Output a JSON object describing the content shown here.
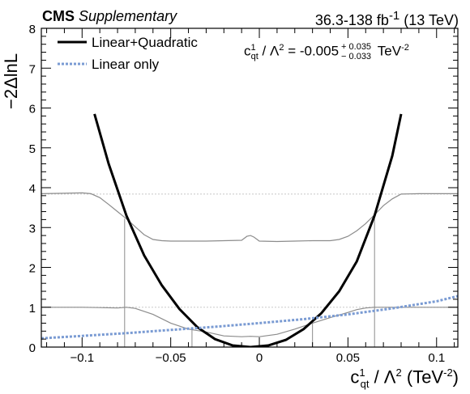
{
  "header": {
    "experiment": "CMS",
    "tag": "Supplementary",
    "lumi_value": "36.3-138 fb",
    "lumi_exp": "-1",
    "energy": "(13 TeV)"
  },
  "axis_text": {
    "y": "−2ΔlnL",
    "x_main": "c",
    "x_sub": "qt",
    "x_sup": "1",
    "x_rest": " / Λ",
    "x_sup2": "2",
    "x_unit": " (TeV",
    "x_unit_exp": "-2",
    "x_close": ")"
  },
  "result": {
    "c": "c",
    "c_sub": "qt",
    "c_sup": "1",
    "lambda": " / Λ",
    "lambda_sup": "2",
    "equals": " = -0.005",
    "plus": "+ 0.035",
    "minus": "− 0.033",
    "unit": " TeV",
    "unit_exp": "-2"
  },
  "colors": {
    "quad": "#000000",
    "linear": "#7a9bd3",
    "profile": "#8c8c8c",
    "ref_line": "#c8c8c8"
  },
  "chart_data": {
    "type": "line",
    "xlim": [
      -0.123,
      0.112
    ],
    "ylim": [
      0,
      8
    ],
    "x_ticks": [
      -0.1,
      -0.05,
      0,
      0.05,
      0.1
    ],
    "x_tick_labels": [
      "−0.1",
      "−0.05",
      "0",
      "0.05",
      "0.1"
    ],
    "y_ticks": [
      0,
      1,
      2,
      3,
      4,
      5,
      6,
      7,
      8
    ],
    "y_tick_labels": [
      "0",
      "1",
      "2",
      "3",
      "4",
      "5",
      "6",
      "7",
      "8"
    ],
    "reference_levels": [
      1,
      3.84
    ],
    "legend_position": "top-left",
    "series": [
      {
        "name": "Linear+Quadratic",
        "style": "solid",
        "x": [
          -0.093,
          -0.085,
          -0.075,
          -0.065,
          -0.055,
          -0.045,
          -0.035,
          -0.025,
          -0.015,
          -0.005,
          0.005,
          0.015,
          0.025,
          0.035,
          0.045,
          0.055,
          0.065,
          0.075,
          0.08
        ],
        "y": [
          5.85,
          4.6,
          3.3,
          2.3,
          1.55,
          0.95,
          0.5,
          0.2,
          0.04,
          0.0,
          0.04,
          0.18,
          0.45,
          0.85,
          1.4,
          2.15,
          3.3,
          4.8,
          5.85
        ]
      },
      {
        "name": "Linear only",
        "style": "dotted",
        "x": [
          -0.123,
          -0.1,
          -0.075,
          -0.05,
          -0.025,
          0,
          0.025,
          0.05,
          0.075,
          0.1,
          0.112
        ],
        "y": [
          0.22,
          0.28,
          0.35,
          0.43,
          0.51,
          0.6,
          0.7,
          0.82,
          0.97,
          1.15,
          1.28
        ]
      },
      {
        "name": "",
        "style": "profile-95",
        "x": [
          -0.123,
          -0.11,
          -0.1,
          -0.095,
          -0.09,
          -0.085,
          -0.08,
          -0.075,
          -0.07,
          -0.065,
          -0.06,
          -0.055,
          -0.05,
          -0.04,
          -0.03,
          -0.02,
          -0.01,
          -0.007,
          -0.005,
          -0.003,
          0,
          0.01,
          0.02,
          0.03,
          0.04,
          0.045,
          0.05,
          0.055,
          0.06,
          0.065,
          0.07,
          0.075,
          0.08,
          0.09,
          0.1,
          0.112
        ],
        "y": [
          3.85,
          3.86,
          3.87,
          3.85,
          3.75,
          3.58,
          3.4,
          3.22,
          3.02,
          2.82,
          2.7,
          2.67,
          2.66,
          2.66,
          2.66,
          2.67,
          2.68,
          2.78,
          2.8,
          2.76,
          2.66,
          2.65,
          2.66,
          2.67,
          2.67,
          2.7,
          2.78,
          2.92,
          3.1,
          3.32,
          3.55,
          3.72,
          3.84,
          3.85,
          3.85,
          3.85
        ]
      },
      {
        "name": "",
        "style": "profile-68",
        "x": [
          -0.123,
          -0.1,
          -0.09,
          -0.08,
          -0.075,
          -0.07,
          -0.06,
          -0.05,
          -0.04,
          -0.03,
          -0.02,
          -0.01,
          -0.005,
          0,
          0.01,
          0.02,
          0.03,
          0.04,
          0.05,
          0.055,
          0.06,
          0.065,
          0.07,
          0.08,
          0.1,
          0.112
        ],
        "y": [
          1.0,
          1.0,
          0.99,
          0.98,
          1.0,
          0.97,
          0.82,
          0.6,
          0.45,
          0.38,
          0.28,
          0.26,
          0.27,
          0.26,
          0.32,
          0.45,
          0.6,
          0.74,
          0.87,
          0.94,
          0.98,
          1.0,
          1.0,
          1.0,
          1.0,
          1.0
        ]
      }
    ],
    "interval_lines": [
      {
        "x": -0.076,
        "y_top": 3.22
      },
      {
        "x": -0.038,
        "y_top": 0.5
      },
      {
        "x": 0.03,
        "y_top": 0.62
      },
      {
        "x": 0.065,
        "y_top": 3.36
      }
    ]
  }
}
